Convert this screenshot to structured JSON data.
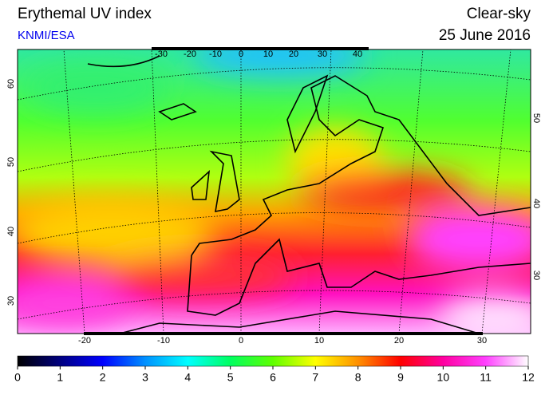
{
  "header": {
    "title": "Erythemal UV index",
    "source": "KNMI/ESA",
    "mode": "Clear-sky",
    "date": "25 June 2016"
  },
  "map": {
    "top_labels": [
      "-30",
      "-20",
      "-10",
      "0",
      "10",
      "20",
      "30",
      "40"
    ],
    "bottom_labels": [
      "-20",
      "-10",
      "0",
      "10",
      "20",
      "30"
    ],
    "left_labels": [
      "30",
      "40",
      "50",
      "60"
    ],
    "right_labels": [
      "30",
      "40",
      "50"
    ]
  },
  "colorbar": {
    "ticks": [
      "0",
      "1",
      "2",
      "3",
      "4",
      "5",
      "6",
      "7",
      "8",
      "9",
      "10",
      "11",
      "12"
    ],
    "colors": [
      "#000000",
      "#000080",
      "#0000ff",
      "#0090ff",
      "#00ffff",
      "#00ff60",
      "#60ff00",
      "#ffff00",
      "#ff9000",
      "#ff0000",
      "#ff00a0",
      "#ff40ff",
      "#ffffff"
    ]
  }
}
